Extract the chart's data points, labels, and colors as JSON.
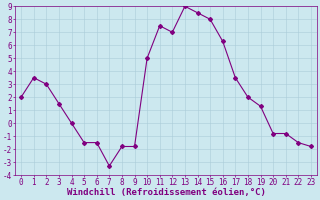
{
  "x": [
    0,
    1,
    2,
    3,
    4,
    5,
    6,
    7,
    8,
    9,
    10,
    11,
    12,
    13,
    14,
    15,
    16,
    17,
    18,
    19,
    20,
    21,
    22,
    23
  ],
  "y": [
    2,
    3.5,
    3,
    1.5,
    0,
    -1.5,
    -1.5,
    -3.3,
    -1.8,
    -1.8,
    5,
    7.5,
    7,
    9,
    8.5,
    8,
    6.3,
    3.5,
    2,
    1.3,
    -0.8,
    -0.8,
    -1.5,
    -1.8
  ],
  "line_color": "#800080",
  "marker": "D",
  "marker_size": 2,
  "bg_color": "#cce8ef",
  "grid_color": "#aacdd8",
  "xlabel": "Windchill (Refroidissement éolien,°C)",
  "ylim": [
    -4,
    9
  ],
  "xlim": [
    -0.5,
    23.5
  ],
  "yticks": [
    -4,
    -3,
    -2,
    -1,
    0,
    1,
    2,
    3,
    4,
    5,
    6,
    7,
    8,
    9
  ],
  "xticks": [
    0,
    1,
    2,
    3,
    4,
    5,
    6,
    7,
    8,
    9,
    10,
    11,
    12,
    13,
    14,
    15,
    16,
    17,
    18,
    19,
    20,
    21,
    22,
    23
  ],
  "tick_color": "#800080",
  "label_color": "#800080",
  "tick_fontsize": 5.5,
  "xlabel_fontsize": 6.5,
  "axis_color": "#800080",
  "linewidth": 0.8
}
